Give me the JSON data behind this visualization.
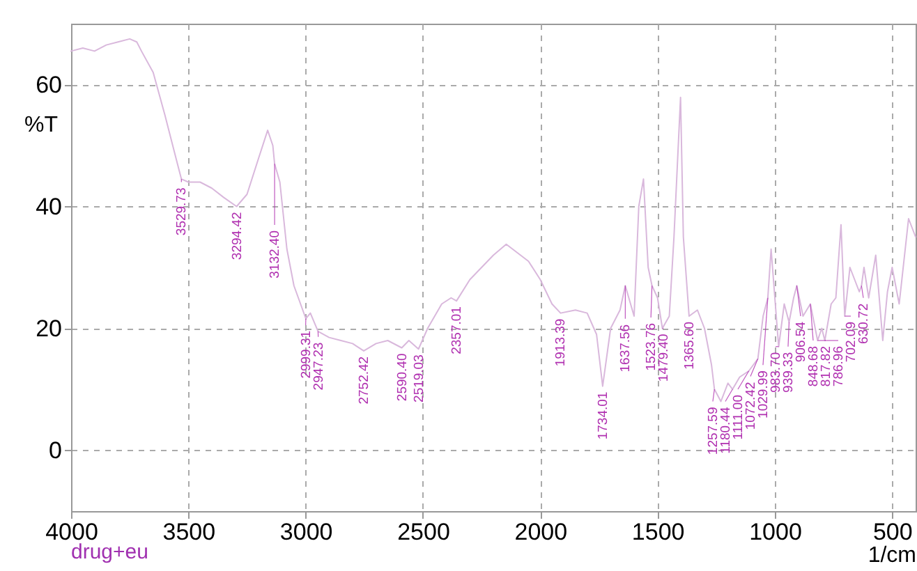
{
  "chart_data": {
    "type": "line",
    "xlabel": "1/cm",
    "ylabel": "%T",
    "xlim": [
      4000,
      400
    ],
    "ylim": [
      -10,
      70
    ],
    "xticks": [
      4000,
      3500,
      3000,
      2500,
      2000,
      1500,
      1000,
      500
    ],
    "yticks": [
      0,
      20,
      40,
      60
    ],
    "grid": true,
    "marker": "none",
    "line_style": "solid",
    "series": [
      {
        "color": "#d9b8dc",
        "x": [
          4000,
          3950,
          3900,
          3850,
          3800,
          3750,
          3720,
          3700,
          3650,
          3600,
          3560,
          3529.73,
          3500,
          3450,
          3400,
          3350,
          3294.42,
          3250,
          3200,
          3162,
          3140,
          3132.4,
          3110,
          3080,
          3050,
          2999.31,
          2980,
          2947.23,
          2900,
          2850,
          2800,
          2752.42,
          2700,
          2650,
          2590.4,
          2560,
          2519.03,
          2480,
          2420,
          2380,
          2357.01,
          2300,
          2200,
          2145,
          2050,
          2000,
          1950,
          1913.39,
          1850,
          1800,
          1760,
          1734.01,
          1700,
          1660,
          1637.56,
          1600,
          1580,
          1560,
          1540,
          1523.76,
          1500,
          1479.4,
          1450,
          1430,
          1402,
          1390,
          1365.6,
          1330,
          1300,
          1270,
          1257.59,
          1230,
          1200,
          1180.44,
          1150,
          1111,
          1072.42,
          1050,
          1029.99,
          1016,
          990,
          983.7,
          960,
          939.33,
          920,
          906.54,
          880,
          848.68,
          817.82,
          800,
          786.96,
          760,
          740,
          718,
          702.09,
          680,
          660,
          640,
          630.72,
          620,
          600,
          570,
          540,
          520,
          500,
          470,
          430,
          400
        ],
        "values": [
          65.5,
          66,
          65.5,
          66.5,
          67,
          67.5,
          67,
          65.5,
          62,
          55,
          49,
          44.5,
          44,
          44,
          43,
          41.5,
          40,
          42,
          48,
          52.5,
          50,
          47,
          44,
          33,
          27,
          21.6,
          22.5,
          19.5,
          18.5,
          18,
          17.5,
          16.3,
          17.5,
          18,
          16.8,
          18,
          16.6,
          20,
          24,
          25,
          24.5,
          28,
          32,
          33.8,
          31,
          28,
          24,
          22.5,
          23,
          22.5,
          19,
          10.5,
          20,
          23,
          27,
          22,
          40,
          44.5,
          30,
          27,
          25,
          20,
          22,
          35,
          57.9,
          35,
          22,
          23,
          20,
          14,
          10,
          8,
          11,
          10,
          12,
          13,
          15,
          22,
          25,
          33,
          20,
          17,
          24,
          21,
          25,
          27,
          22,
          24,
          18,
          20,
          18,
          24,
          25,
          37,
          22,
          30,
          28,
          26,
          27,
          30,
          25,
          32,
          18,
          26,
          30,
          24,
          38,
          35
        ]
      }
    ],
    "annotations": [
      "drug+eu",
      {
        "text": "3529.73",
        "x": 3529.73,
        "y": 44.5
      },
      {
        "text": "3294.42",
        "x": 3294.42,
        "y": 40
      },
      {
        "text": "3132.40",
        "x": 3132.4,
        "y": 47
      },
      {
        "text": "2999.31",
        "x": 2999.31,
        "y": 21.6
      },
      {
        "text": "2947.23",
        "x": 2947.23,
        "y": 19.5
      },
      {
        "text": "2752.42",
        "x": 2752.42,
        "y": 16.3
      },
      {
        "text": "2590.40",
        "x": 2590.4,
        "y": 16.8
      },
      {
        "text": "2519.03",
        "x": 2519.03,
        "y": 16.6
      },
      {
        "text": "2357.01",
        "x": 2357.01,
        "y": 24.5
      },
      {
        "text": "1913.39",
        "x": 1913.39,
        "y": 22.5
      },
      {
        "text": "1734.01",
        "x": 1734.01,
        "y": 10.5
      },
      {
        "text": "1637.56",
        "x": 1637.56,
        "y": 27
      },
      {
        "text": "1523.76",
        "x": 1523.76,
        "y": 27
      },
      {
        "text": "1479.40",
        "x": 1479.4,
        "y": 20
      },
      {
        "text": "1365.60",
        "x": 1365.6,
        "y": 22
      },
      {
        "text": "1257.59",
        "x": 1257.59,
        "y": 10
      },
      {
        "text": "1180.44",
        "x": 1180.44,
        "y": 10
      },
      {
        "text": "1111.00",
        "x": 1111,
        "y": 13
      },
      {
        "text": "1072.42",
        "x": 1072.42,
        "y": 15
      },
      {
        "text": "1029.99",
        "x": 1029.99,
        "y": 25
      },
      {
        "text": "983.70",
        "x": 983.7,
        "y": 17
      },
      {
        "text": "939.33",
        "x": 939.33,
        "y": 21
      },
      {
        "text": "906.54",
        "x": 906.54,
        "y": 27
      },
      {
        "text": "848.68",
        "x": 848.68,
        "y": 24
      },
      {
        "text": "817.82",
        "x": 817.82,
        "y": 18
      },
      {
        "text": "786.96",
        "x": 786.96,
        "y": 18
      },
      {
        "text": "702.09",
        "x": 702.09,
        "y": 22
      },
      {
        "text": "630.72",
        "x": 630.72,
        "y": 27
      }
    ]
  }
}
